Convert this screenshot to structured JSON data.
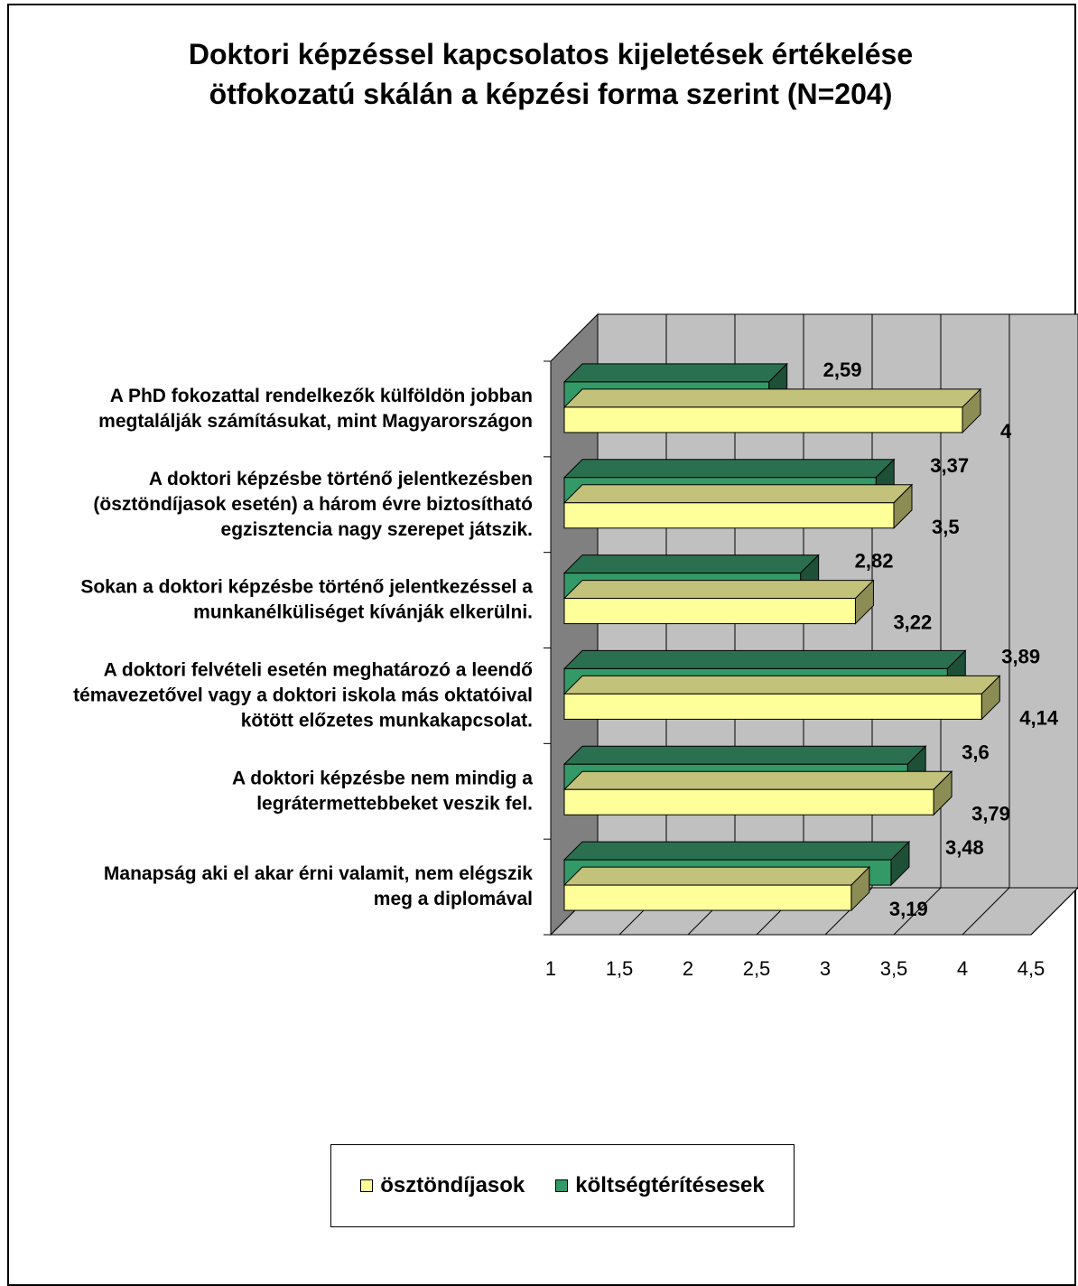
{
  "chart_data": {
    "type": "bar",
    "orientation": "horizontal",
    "style": "3d",
    "title": "Doktori képzéssel kapcsolatos kijeletések értékelése ötfokozatú skálán a képzési forma szerint (N=204)",
    "title_lines": [
      "Doktori képzéssel kapcsolatos kijeletések értékelése",
      "ötfokozatú skálán a képzési forma szerint (N=204)"
    ],
    "categories": [
      [
        "A PhD fokozattal rendelkezők külföldön jobban",
        "megtalálják számításukat, mint Magyarországon"
      ],
      [
        "A doktori képzésbe történő jelentkezésben",
        "(ösztöndíjasok esetén) a három évre biztosítható",
        "egzisztencia nagy szerepet játszik."
      ],
      [
        "Sokan a doktori képzésbe történő jelentkezéssel a",
        "munkanélküliséget kívánják elkerülni."
      ],
      [
        "A doktori felvételi esetén meghatározó a leendő",
        "témavezetővel vagy a doktori iskola más oktatóival",
        "kötött előzetes munkakapcsolat."
      ],
      [
        "A doktori képzésbe nem mindig a",
        "legrátermettebbeket veszik fel."
      ],
      [
        "Manapság aki el akar érni valamit, nem elégszik",
        "meg a diplomával"
      ]
    ],
    "series": [
      {
        "name": "költségtérítésesek",
        "color": "#339966",
        "top_color": "#2a7050",
        "side_color": "#1e5038",
        "values": [
          2.59,
          3.37,
          2.82,
          3.89,
          3.6,
          3.48
        ],
        "labels": [
          "2,59",
          "3,37",
          "2,82",
          "3,89",
          "3,6",
          "3,48"
        ]
      },
      {
        "name": "ösztöndíjasok",
        "color": "#ffff99",
        "top_color": "#c2c27a",
        "side_color": "#8c8c55",
        "values": [
          4,
          3.5,
          3.22,
          4.14,
          3.79,
          3.19
        ],
        "labels": [
          "4",
          "3,5",
          "3,22",
          "4,14",
          "3,79",
          "3,19"
        ]
      }
    ],
    "x_ticks": [
      "1",
      "1,5",
      "2",
      "2,5",
      "3",
      "3,5",
      "4",
      "4,5"
    ],
    "xlim": [
      1,
      4.5
    ],
    "grid": true,
    "legend_position": "bottom",
    "legend": [
      {
        "name": "ösztöndíjasok",
        "color": "#ffff99"
      },
      {
        "name": "költségtérítésesek",
        "color": "#339966"
      }
    ],
    "wall_color": "#c0c0c0",
    "side_wall_color": "#808080"
  }
}
